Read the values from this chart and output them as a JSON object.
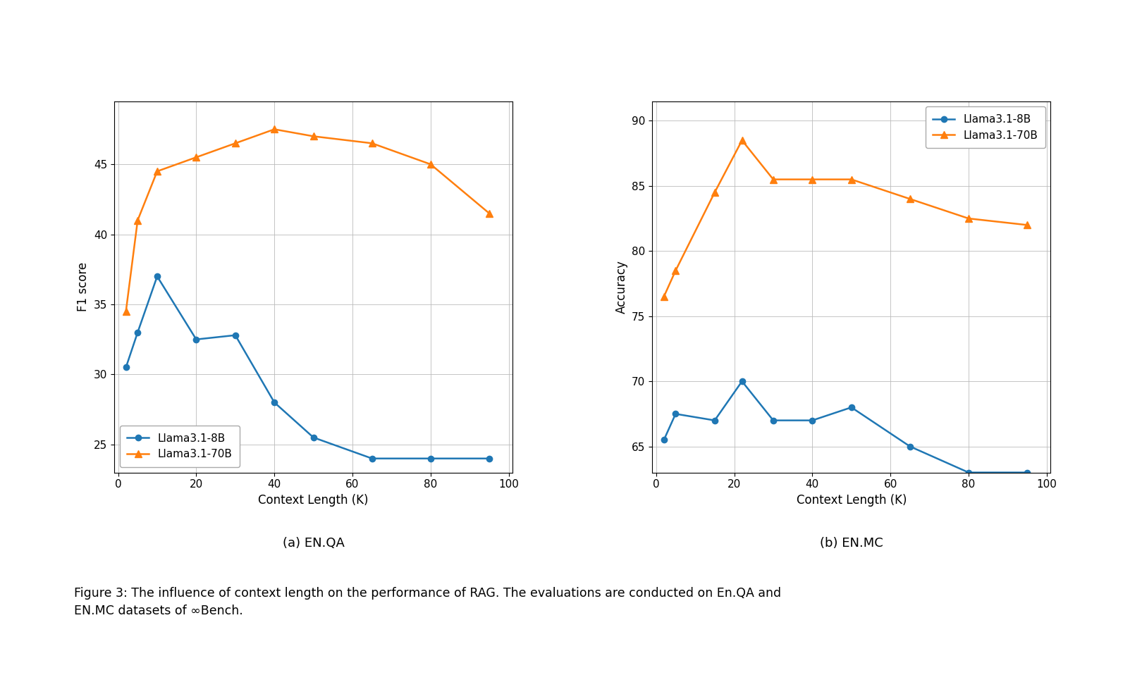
{
  "chart1": {
    "subtitle": "(a) EN.QA",
    "xlabel": "Context Length (K)",
    "ylabel": "F1 score",
    "x": [
      2,
      5,
      10,
      20,
      30,
      40,
      50,
      65,
      80,
      95
    ],
    "llama_8b": [
      30.5,
      33.0,
      37.0,
      32.5,
      32.8,
      28.0,
      25.5,
      24.0,
      24.0,
      24.0
    ],
    "llama_70b": [
      34.5,
      41.0,
      44.5,
      45.5,
      46.5,
      47.5,
      47.0,
      46.5,
      45.0,
      41.5
    ],
    "ylim": [
      23,
      49.5
    ],
    "yticks": [
      25,
      30,
      35,
      40,
      45
    ],
    "xlim": [
      -1,
      101
    ],
    "xticks": [
      0,
      20,
      40,
      60,
      80,
      100
    ]
  },
  "chart2": {
    "subtitle": "(b) EN.MC",
    "xlabel": "Context Length (K)",
    "ylabel": "Accuracy",
    "x": [
      2,
      5,
      15,
      22,
      30,
      40,
      50,
      65,
      80,
      95
    ],
    "llama_8b": [
      65.5,
      67.5,
      67.0,
      70.0,
      67.0,
      67.0,
      68.0,
      65.0,
      63.0,
      63.0
    ],
    "llama_70b": [
      76.5,
      78.5,
      84.5,
      88.5,
      85.5,
      85.5,
      85.5,
      84.0,
      82.5,
      82.0
    ],
    "ylim": [
      63,
      91.5
    ],
    "yticks": [
      65,
      70,
      75,
      80,
      85,
      90
    ],
    "xlim": [
      -1,
      101
    ],
    "xticks": [
      0,
      20,
      40,
      60,
      80,
      100
    ]
  },
  "colors": {
    "llama_8b": "#1f77b4",
    "llama_70b": "#ff7f0e"
  },
  "legend_labels": {
    "llama_8b": "Llama3.1-8B",
    "llama_70b": "Llama3.1-70B"
  },
  "caption": "Figure 3: The influence of context length on the performance of RAG. The evaluations are conducted on En.QA and\nEN.MC datasets of ∞Bench.",
  "figure_bg": "#ffffff"
}
